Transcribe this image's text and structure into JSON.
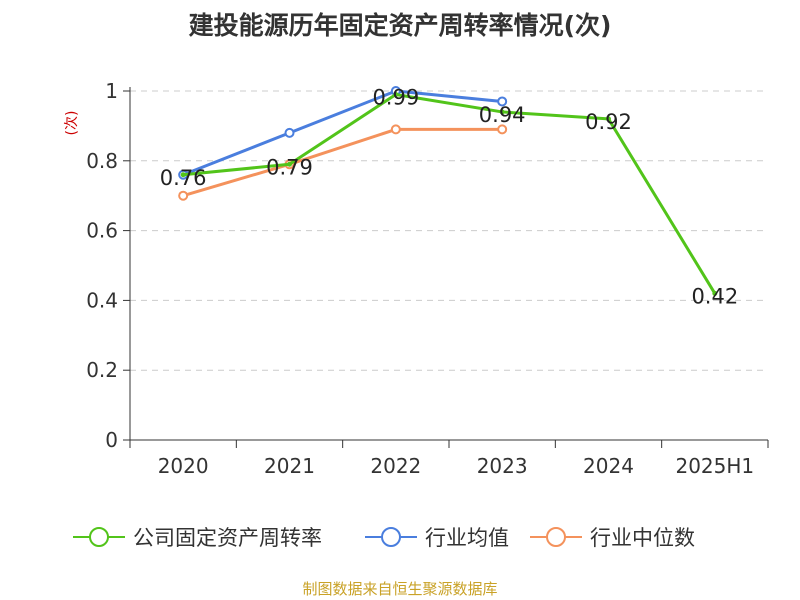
{
  "title": "建投能源历年固定资产周转率情况(次)",
  "source": "制图数据来自恒生聚源数据库",
  "colors": {
    "title": "#333333",
    "axis": "#333333",
    "grid": "#cccccc",
    "ylabel": "#cc0000",
    "source": "#c9a227",
    "background": "#ffffff"
  },
  "chart_data": {
    "type": "line",
    "title": "建投能源历年固定资产周转率情况(次)",
    "xlabel": "",
    "ylabel": "(次)",
    "categories": [
      "2020",
      "2021",
      "2022",
      "2023",
      "2024",
      "2025H1"
    ],
    "ylim": [
      0,
      1
    ],
    "yticks": [
      0,
      0.2,
      0.4,
      0.6,
      0.8,
      1
    ],
    "ytick_labels": [
      "0",
      "0.2",
      "0.4",
      "0.6",
      "0.8",
      "1"
    ],
    "grid": "horizontal dashed",
    "legend_position": "bottom",
    "series": [
      {
        "name": "公司固定资产周转率",
        "color": "#52c41a",
        "values": [
          0.76,
          0.79,
          0.99,
          0.94,
          0.92,
          0.42
        ],
        "labels": [
          "0.76",
          "0.79",
          "0.99",
          "0.94",
          "0.92",
          "0.42"
        ]
      },
      {
        "name": "行业均值",
        "color": "#4a7ede",
        "values": [
          0.76,
          0.88,
          1.0,
          0.97,
          null,
          null
        ]
      },
      {
        "name": "行业中位数",
        "color": "#f4925c",
        "values": [
          0.7,
          0.79,
          0.89,
          0.89,
          null,
          null
        ]
      }
    ]
  }
}
